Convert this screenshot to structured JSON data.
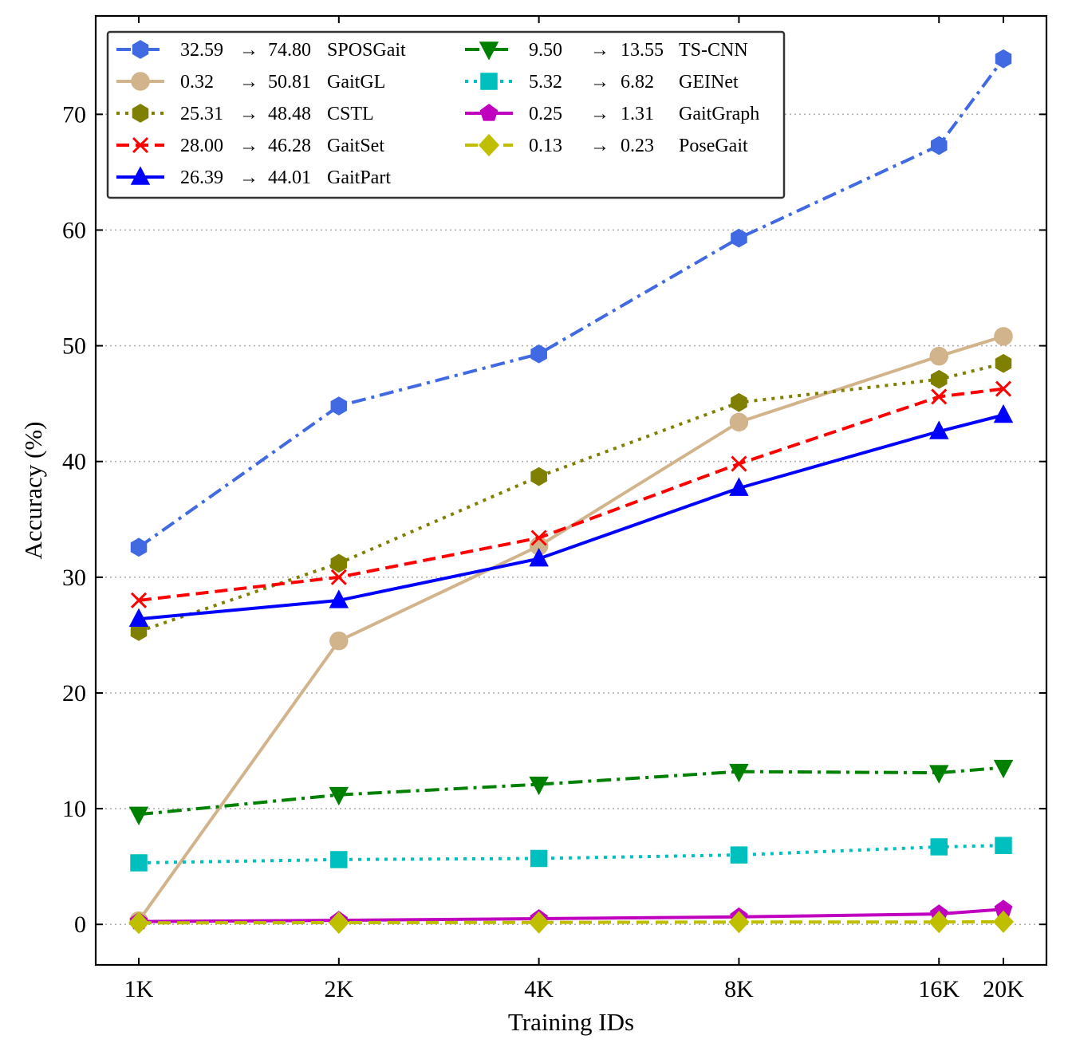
{
  "chart_data": {
    "type": "line",
    "xlabel": "Training IDs",
    "ylabel": "Accuracy (%)",
    "categories": [
      "1K",
      "2K",
      "4K",
      "8K",
      "16K",
      "20K"
    ],
    "x": [
      1,
      2,
      4,
      8,
      16,
      20
    ],
    "x_scale": "log2-like",
    "ylim": [
      -3.5,
      78.5
    ],
    "yticks": [
      0,
      10,
      20,
      30,
      40,
      50,
      60,
      70
    ],
    "grid": "horizontal dotted",
    "legend_position": "top-left",
    "legend_columns": 2,
    "series": [
      {
        "name": "SPOSGait",
        "start": "32.59",
        "end": "74.80",
        "color": "#4169e1",
        "linestyle": "dashdot",
        "marker": "hexagon",
        "values": [
          32.59,
          44.8,
          49.3,
          59.3,
          67.3,
          74.8
        ]
      },
      {
        "name": "GaitGL",
        "start": "0.32",
        "end": "50.81",
        "color": "#d2b48c",
        "linestyle": "solid",
        "marker": "circle",
        "values": [
          0.32,
          24.5,
          32.7,
          43.4,
          49.1,
          50.81
        ]
      },
      {
        "name": "CSTL",
        "start": "25.31",
        "end": "48.48",
        "color": "#808000",
        "linestyle": "dotted",
        "marker": "hexagon",
        "values": [
          25.31,
          31.2,
          38.7,
          45.1,
          47.1,
          48.48
        ]
      },
      {
        "name": "GaitSet",
        "start": "28.00",
        "end": "46.28",
        "color": "#ff0000",
        "linestyle": "dashed",
        "marker": "x",
        "values": [
          28.0,
          30.0,
          33.4,
          39.8,
          45.6,
          46.28
        ]
      },
      {
        "name": "GaitPart",
        "start": "26.39",
        "end": "44.01",
        "color": "#0000ff",
        "linestyle": "solid",
        "marker": "triangle-up",
        "values": [
          26.39,
          28.0,
          31.6,
          37.7,
          42.6,
          44.01
        ]
      },
      {
        "name": "TS-CNN",
        "start": "9.50",
        "end": "13.55",
        "color": "#008000",
        "linestyle": "dashdot",
        "marker": "triangle-down",
        "values": [
          9.5,
          11.2,
          12.1,
          13.2,
          13.1,
          13.55
        ]
      },
      {
        "name": "GEINet",
        "start": "5.32",
        "end": "6.82",
        "color": "#00bfbf",
        "linestyle": "dotted",
        "marker": "square",
        "values": [
          5.32,
          5.6,
          5.7,
          6.0,
          6.7,
          6.82
        ]
      },
      {
        "name": "GaitGraph",
        "start": "0.25",
        "end": "1.31",
        "color": "#bf00bf",
        "linestyle": "solid",
        "marker": "pentagon",
        "values": [
          0.25,
          0.35,
          0.5,
          0.65,
          0.9,
          1.31
        ]
      },
      {
        "name": "PoseGait",
        "start": "0.13",
        "end": "0.23",
        "color": "#bfbf00",
        "linestyle": "dashed",
        "marker": "diamond",
        "values": [
          0.13,
          0.15,
          0.17,
          0.2,
          0.21,
          0.23
        ]
      }
    ]
  }
}
